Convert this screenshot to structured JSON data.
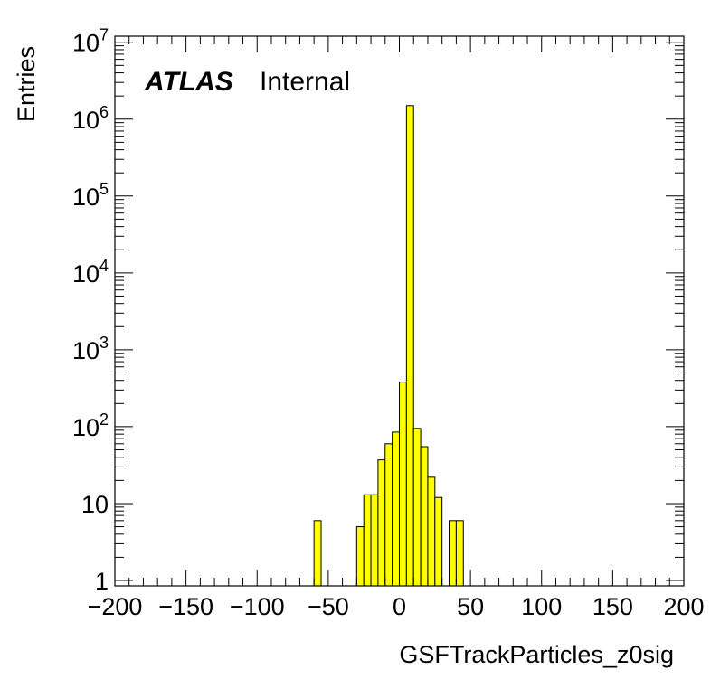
{
  "chart_data": {
    "type": "bar",
    "histogram": true,
    "title": "",
    "xlabel": "GSFTrackParticles_z0sig",
    "ylabel": "Entries",
    "xlim": [
      -200,
      200
    ],
    "ylim": [
      0.85,
      12000000
    ],
    "yscale": "log",
    "grid": false,
    "legend": "none",
    "fill_color": "#ffff00",
    "edge_color": "#000000",
    "bin_width": 5,
    "x_ticks": [
      "−200",
      "−150",
      "−100",
      "−50",
      "0",
      "50",
      "100",
      "150",
      "200"
    ],
    "x_tick_values": [
      -200,
      -150,
      -100,
      -50,
      0,
      50,
      100,
      150,
      200
    ],
    "y_ticks": [
      {
        "value": 1,
        "base": "1",
        "exp": ""
      },
      {
        "value": 10,
        "base": "10",
        "exp": ""
      },
      {
        "value": 100,
        "base": "10",
        "exp": "2"
      },
      {
        "value": 1000,
        "base": "10",
        "exp": "3"
      },
      {
        "value": 10000,
        "base": "10",
        "exp": "4"
      },
      {
        "value": 100000,
        "base": "10",
        "exp": "5"
      },
      {
        "value": 1000000,
        "base": "10",
        "exp": "6"
      },
      {
        "value": 10000000,
        "base": "10",
        "exp": "7"
      }
    ],
    "bins": [
      {
        "x0": -60,
        "x1": -55,
        "value": 6
      },
      {
        "x0": -30,
        "x1": -25,
        "value": 5
      },
      {
        "x0": -25,
        "x1": -20,
        "value": 13
      },
      {
        "x0": -20,
        "x1": -15,
        "value": 13
      },
      {
        "x0": -15,
        "x1": -10,
        "value": 37
      },
      {
        "x0": -10,
        "x1": -5,
        "value": 60
      },
      {
        "x0": -5,
        "x1": 0,
        "value": 85
      },
      {
        "x0": 0,
        "x1": 5,
        "value": 380
      },
      {
        "x0": 5,
        "x1": 10,
        "value": 1500000
      },
      {
        "x0": 10,
        "x1": 15,
        "value": 95
      },
      {
        "x0": 15,
        "x1": 20,
        "value": 55
      },
      {
        "x0": 20,
        "x1": 25,
        "value": 22
      },
      {
        "x0": 25,
        "x1": 30,
        "value": 12
      },
      {
        "x0": 35,
        "x1": 40,
        "value": 6
      },
      {
        "x0": 40,
        "x1": 45,
        "value": 6
      }
    ],
    "annotations": {
      "atlas": "ATLAS",
      "status": "Internal"
    }
  }
}
